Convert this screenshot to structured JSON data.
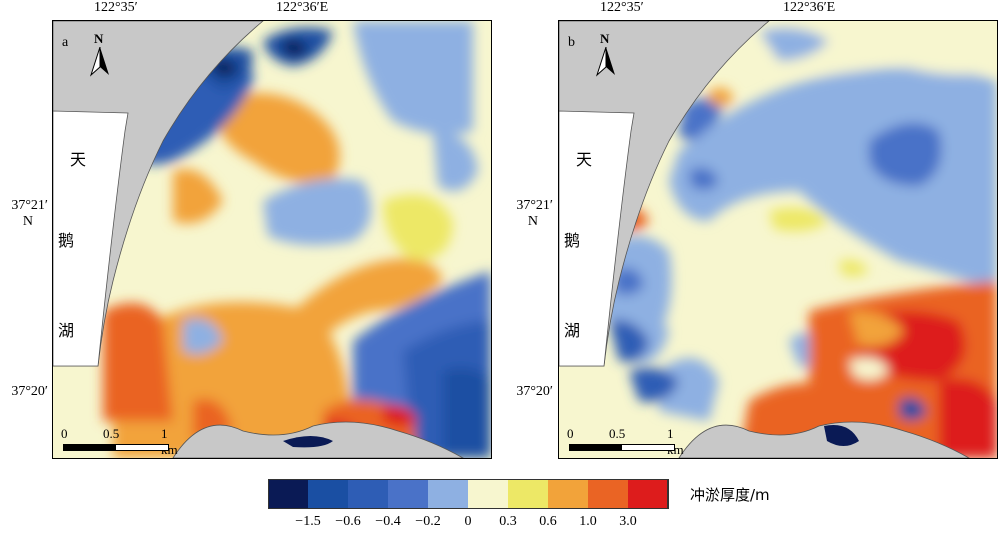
{
  "axes": {
    "lon_ticks": [
      "122°35′",
      "122°36′E"
    ],
    "lat_ticks": [
      "37°21′\nN",
      "37°20′"
    ],
    "lat_label_1_line1": "37°21′",
    "lat_label_1_line2": "N",
    "lat_label_2": "37°20′"
  },
  "panels": [
    {
      "letter": "a"
    },
    {
      "letter": "b"
    }
  ],
  "lake_name": [
    "天",
    "鹅",
    "湖"
  ],
  "north_label": "N",
  "scale_bar": {
    "labels": [
      "0",
      "0.5",
      "1 km"
    ]
  },
  "legend": {
    "title": "冲淤厚度/m",
    "colors": [
      "#0a1a55",
      "#1a4fa3",
      "#2e5db5",
      "#4a72c8",
      "#8eb0e2",
      "#f7f6cf",
      "#ede866",
      "#f2a33a",
      "#ea6424",
      "#dd1c1c"
    ],
    "labels": [
      "−1.5",
      "−0.6",
      "−0.4",
      "−0.2",
      "0",
      "0.3",
      "0.6",
      "1.0",
      "3.0"
    ]
  }
}
